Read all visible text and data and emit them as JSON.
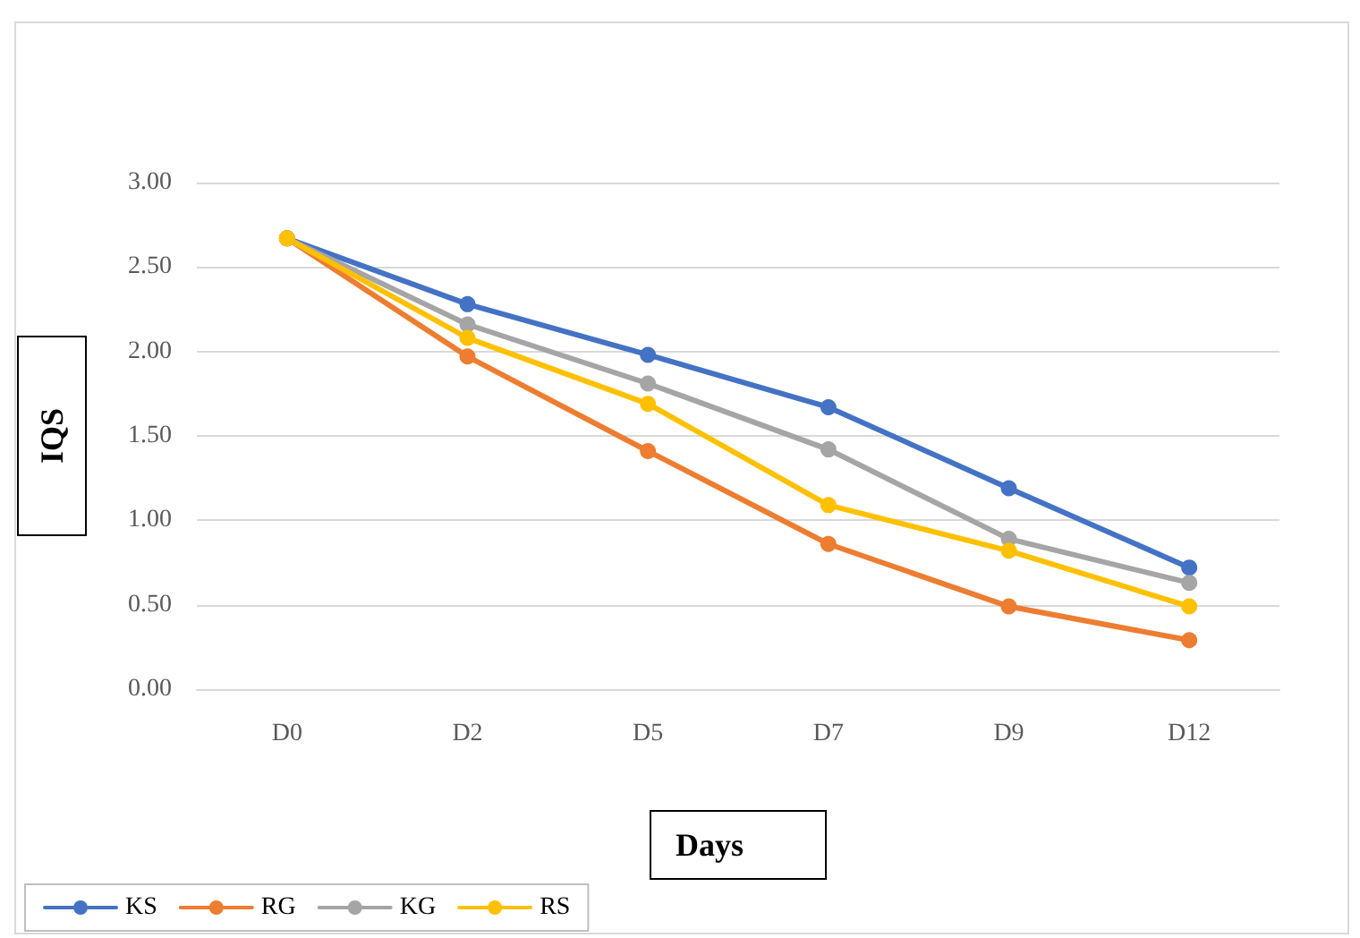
{
  "chart_data": {
    "type": "line",
    "xlabel": "Days",
    "ylabel": "IQS",
    "categories": [
      "D0",
      "D2",
      "D5",
      "D7",
      "D9",
      "D12"
    ],
    "series": [
      {
        "name": "KS",
        "color": "#4472c4",
        "values": [
          2.67,
          2.28,
          1.98,
          1.67,
          1.19,
          0.72
        ]
      },
      {
        "name": "RG",
        "color": "#ed7d31",
        "values": [
          2.67,
          1.97,
          1.41,
          0.86,
          0.49,
          0.29
        ]
      },
      {
        "name": "KG",
        "color": "#a5a5a5",
        "values": [
          2.67,
          2.16,
          1.81,
          1.42,
          0.89,
          0.63
        ]
      },
      {
        "name": "RS",
        "color": "#ffc000",
        "values": [
          2.67,
          2.08,
          1.69,
          1.09,
          0.82,
          0.49
        ]
      }
    ],
    "ylim": [
      0,
      3
    ],
    "yticks": [
      {
        "value": 0,
        "label": "0.00"
      },
      {
        "value": 0.5,
        "label": "0.50"
      },
      {
        "value": 1,
        "label": "1.00"
      },
      {
        "value": 1.5,
        "label": "1.50"
      },
      {
        "value": 2,
        "label": "2.00"
      },
      {
        "value": 2.5,
        "label": "2.50"
      },
      {
        "value": 3,
        "label": "3.00"
      }
    ],
    "grid": "y",
    "legend": "bottom left",
    "marker": "circle",
    "line_style": "solid"
  }
}
